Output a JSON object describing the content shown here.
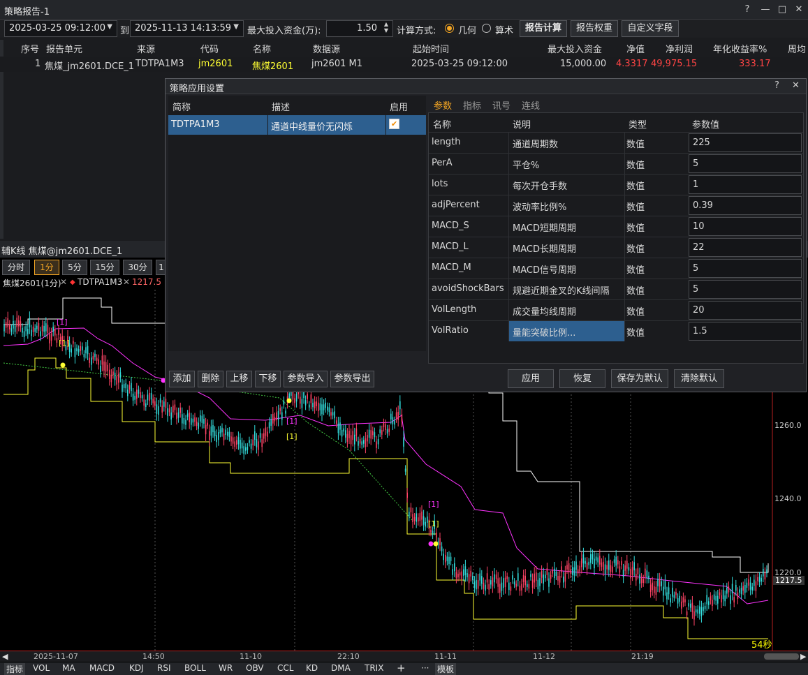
{
  "window": {
    "title": "策略报告-1",
    "controls": [
      "?",
      "—",
      "□",
      "✕"
    ]
  },
  "toolbar": {
    "start": "2025-03-25 09:12:00",
    "to": "到",
    "end": "2025-11-13 14:13:59",
    "maxcap_label": "最大投入资金(万):",
    "maxcap_value": "1.50",
    "calc_label": "计算方式:",
    "calc_options": [
      "几何",
      "算术"
    ],
    "calc_selected": "几何",
    "btn_calc": "报告计算",
    "btn_weight": "报告权重",
    "btn_custom": "自定义字段"
  },
  "report": {
    "headers": [
      "序号",
      "报告单元",
      "来源",
      "代码",
      "名称",
      "数据源",
      "起始时间",
      "最大投入资金",
      "净值",
      "净利润",
      "年化收益率%",
      "周均"
    ],
    "row": {
      "idx": "1",
      "unit": "焦煤_jm2601.DCE_1",
      "source": "TDTPA1M3",
      "code": "jm2601",
      "name": "焦煤2601",
      "datasource": "jm2601 M1",
      "start": "2025-03-25 09:12:00",
      "maxcap": "15,000.00",
      "nav": "4.3317",
      "profit": "49,975.15",
      "annual": "333.17"
    }
  },
  "kline": {
    "title": "辅K线 焦煤@jm2601.DCE_1",
    "timeframes": [
      "分时",
      "1分",
      "5分",
      "15分",
      "30分",
      "1"
    ],
    "active_tf": "1分",
    "legend": {
      "a": "焦煤2601(1分)",
      "b": "TDTPA1M3",
      "c": "1217.5"
    },
    "yticks": [
      "1260.0",
      "1240.0",
      "1220.0"
    ],
    "price_tag": "1217.5",
    "countdown": "54秒",
    "xlabels": [
      "2025-11-07",
      "14:50",
      "11-10",
      "22:10",
      "11-11",
      "11-12",
      "21:19"
    ],
    "markers": [
      "[1]",
      "[1]",
      "[1]",
      "[1]",
      "[1]",
      "[1]"
    ],
    "indicators": [
      "指标",
      "VOL",
      "MA",
      "MACD",
      "KDJ",
      "RSI",
      "BOLL",
      "WR",
      "OBV",
      "CCL",
      "KD",
      "DMA",
      "TRIX",
      "+",
      "···",
      "模板"
    ]
  },
  "dialog": {
    "title": "策略应用设置",
    "help": "?",
    "close": "✕",
    "strategy_headers": [
      "简称",
      "描述",
      "启用"
    ],
    "strategy": {
      "name": "TDTPA1M3",
      "desc": "通道中线量价无闪烁",
      "enabled": "✔"
    },
    "left_buttons": [
      "添加",
      "删除",
      "上移",
      "下移",
      "参数导入",
      "参数导出"
    ],
    "tabs": [
      "参数",
      "指标",
      "讯号",
      "连线"
    ],
    "active_tab": "参数",
    "param_headers": [
      "名称",
      "说明",
      "类型",
      "参数值"
    ],
    "params": [
      {
        "name": "length",
        "desc": "通道周期数",
        "type": "数值",
        "value": "225"
      },
      {
        "name": "PerA",
        "desc": "平仓%",
        "type": "数值",
        "value": "5"
      },
      {
        "name": "lots",
        "desc": "每次开仓手数",
        "type": "数值",
        "value": "1"
      },
      {
        "name": "adjPercent",
        "desc": "波动率比例%",
        "type": "数值",
        "value": "0.39"
      },
      {
        "name": "MACD_S",
        "desc": "MACD短期周期",
        "type": "数值",
        "value": "10"
      },
      {
        "name": "MACD_L",
        "desc": "MACD长期周期",
        "type": "数值",
        "value": "22"
      },
      {
        "name": "MACD_M",
        "desc": "MACD信号周期",
        "type": "数值",
        "value": "5"
      },
      {
        "name": "avoidShockBars",
        "desc": "规避近期金叉的K线间隔",
        "type": "数值",
        "value": "5"
      },
      {
        "name": "VolLength",
        "desc": "成交量均线周期",
        "type": "数值",
        "value": "20"
      },
      {
        "name": "VolRatio",
        "desc": "量能突破比例...",
        "type": "数值",
        "value": "1.5"
      }
    ],
    "right_buttons": [
      "应用",
      "恢复",
      "保存为默认",
      "清除默认"
    ]
  },
  "colors": {
    "accent": "#f5a623",
    "red": "#ff4444",
    "yellow": "#ffff00",
    "magenta": "#ff33ff",
    "cyan": "#33dddd",
    "select": "#2d5f8f"
  }
}
